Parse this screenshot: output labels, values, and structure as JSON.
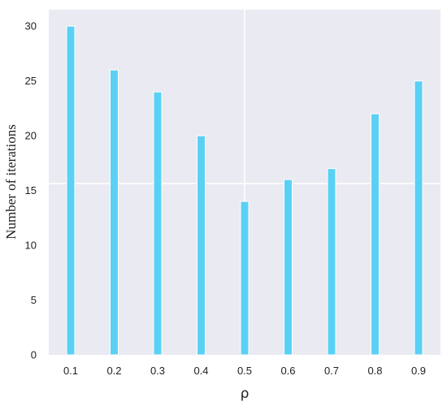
{
  "chart_data": {
    "type": "bar",
    "categories": [
      "0.1",
      "0.2",
      "0.3",
      "0.4",
      "0.5",
      "0.6",
      "0.7",
      "0.8",
      "0.9"
    ],
    "values": [
      30,
      26,
      24,
      20,
      14,
      16,
      17,
      22,
      25
    ],
    "xlabel": "ρ",
    "ylabel": "Number of iterations",
    "ylim": [
      0,
      31.5
    ],
    "yticks": [
      "0",
      "5",
      "10",
      "15",
      "20",
      "25",
      "30"
    ],
    "grid": true,
    "style": {
      "background": "#eaeaf2",
      "bar_color": "#5bd0f5",
      "grid_color": "#ffffff"
    }
  }
}
